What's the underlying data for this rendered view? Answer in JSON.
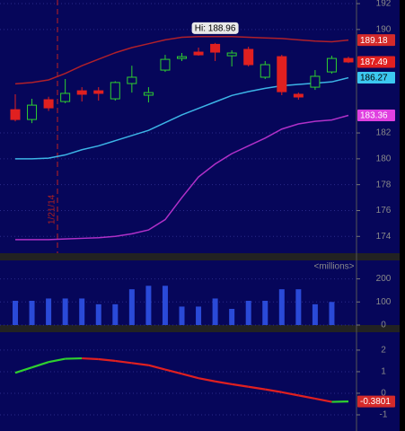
{
  "chart_data": [
    {
      "type": "candlestick",
      "categories": [
        null,
        null,
        null,
        null,
        null,
        null,
        null,
        null,
        null,
        null,
        null,
        null,
        null,
        null,
        null,
        null,
        null,
        null,
        null,
        null,
        null
      ],
      "open": [
        183.8,
        183.04,
        184.57,
        184.43,
        185.26,
        185.26,
        184.64,
        185.82,
        184.92,
        186.86,
        187.76,
        188.25,
        188.85,
        187.97,
        188.46,
        186.31,
        187.9,
        184.99,
        185.54,
        186.72,
        187.76
      ],
      "high": [
        184.99,
        184.64,
        184.8,
        186.17,
        185.54,
        185.54,
        186.0,
        187.2,
        185.54,
        188.04,
        188.18,
        188.6,
        188.96,
        188.39,
        188.67,
        187.56,
        188.04,
        185.12,
        186.86,
        187.97,
        187.9
      ],
      "low": [
        182.9,
        182.76,
        183.7,
        184.3,
        184.43,
        184.5,
        184.5,
        185.12,
        184.36,
        186.72,
        187.56,
        187.97,
        187.56,
        187.14,
        187.14,
        186.17,
        184.92,
        184.57,
        185.33,
        186.58,
        187.4
      ],
      "close": [
        183.04,
        184.15,
        183.94,
        185.06,
        184.99,
        185.06,
        185.9,
        186.31,
        185.12,
        187.69,
        187.9,
        188.04,
        188.25,
        188.18,
        187.28,
        187.28,
        185.19,
        184.78,
        186.38,
        187.76,
        187.49
      ],
      "up_color": "#2fd02f",
      "down_color": "#e02020",
      "lines": [
        {
          "color": "#b0202a",
          "label_color": "#d42a2a",
          "values": [
            185.8,
            185.9,
            186.1,
            186.6,
            187.2,
            187.7,
            188.2,
            188.6,
            188.9,
            189.2,
            189.4,
            189.45,
            189.45,
            189.45,
            189.4,
            189.35,
            189.3,
            189.2,
            189.1,
            189.05,
            189.18
          ]
        },
        {
          "color": "#3cb4e6",
          "label_color": "#3cc8f0",
          "values": [
            180.0,
            180.0,
            180.05,
            180.3,
            180.7,
            181.0,
            181.4,
            181.8,
            182.2,
            182.8,
            183.4,
            183.9,
            184.4,
            184.9,
            185.2,
            185.45,
            185.65,
            185.75,
            185.85,
            185.95,
            186.27
          ]
        },
        {
          "color": "#b030c8",
          "label_color": "#e040e0",
          "values": [
            173.75,
            173.75,
            173.75,
            173.8,
            173.85,
            173.9,
            174.0,
            174.2,
            174.5,
            175.3,
            177.0,
            178.6,
            179.6,
            180.4,
            181.0,
            181.6,
            182.3,
            182.7,
            182.9,
            183.0,
            183.36
          ]
        }
      ],
      "high_label": "Hi: 188.96",
      "event_label": "1/21/14",
      "ylim": [
        172.7,
        192.28
      ],
      "yticks": [
        174,
        176,
        178,
        180,
        182,
        190,
        192
      ],
      "grid": true
    },
    {
      "type": "bar",
      "categories": [
        null,
        null,
        null,
        null,
        null,
        null,
        null,
        null,
        null,
        null,
        null,
        null,
        null,
        null,
        null,
        null,
        null,
        null,
        null,
        null,
        null
      ],
      "unit_label": "<millions>",
      "values": [
        105,
        105,
        115,
        115,
        115,
        90,
        90,
        155,
        170,
        170,
        80,
        80,
        115,
        70,
        105,
        105,
        155,
        155,
        90,
        100,
        null
      ],
      "color": "#2a4ad8",
      "ylim": [
        0,
        280
      ],
      "yticks": [
        0,
        100,
        200
      ],
      "grid": true
    },
    {
      "type": "line",
      "categories": [
        null,
        null,
        null,
        null,
        null,
        null,
        null,
        null,
        null,
        null,
        null,
        null,
        null,
        null,
        null,
        null,
        null,
        null,
        null,
        null,
        null
      ],
      "values": [
        0.95,
        1.2,
        1.45,
        1.6,
        1.62,
        1.58,
        1.5,
        1.4,
        1.3,
        1.1,
        0.9,
        0.7,
        0.55,
        0.42,
        0.3,
        0.18,
        0.05,
        -0.1,
        -0.25,
        -0.4,
        -0.3801
      ],
      "up_color": "#2fd02f",
      "down_color": "#e02020",
      "label_color": "#d42a2a",
      "ylim": [
        -1.75,
        2.83
      ],
      "yticks": [
        -1,
        0,
        1,
        2
      ],
      "grid": true
    }
  ]
}
